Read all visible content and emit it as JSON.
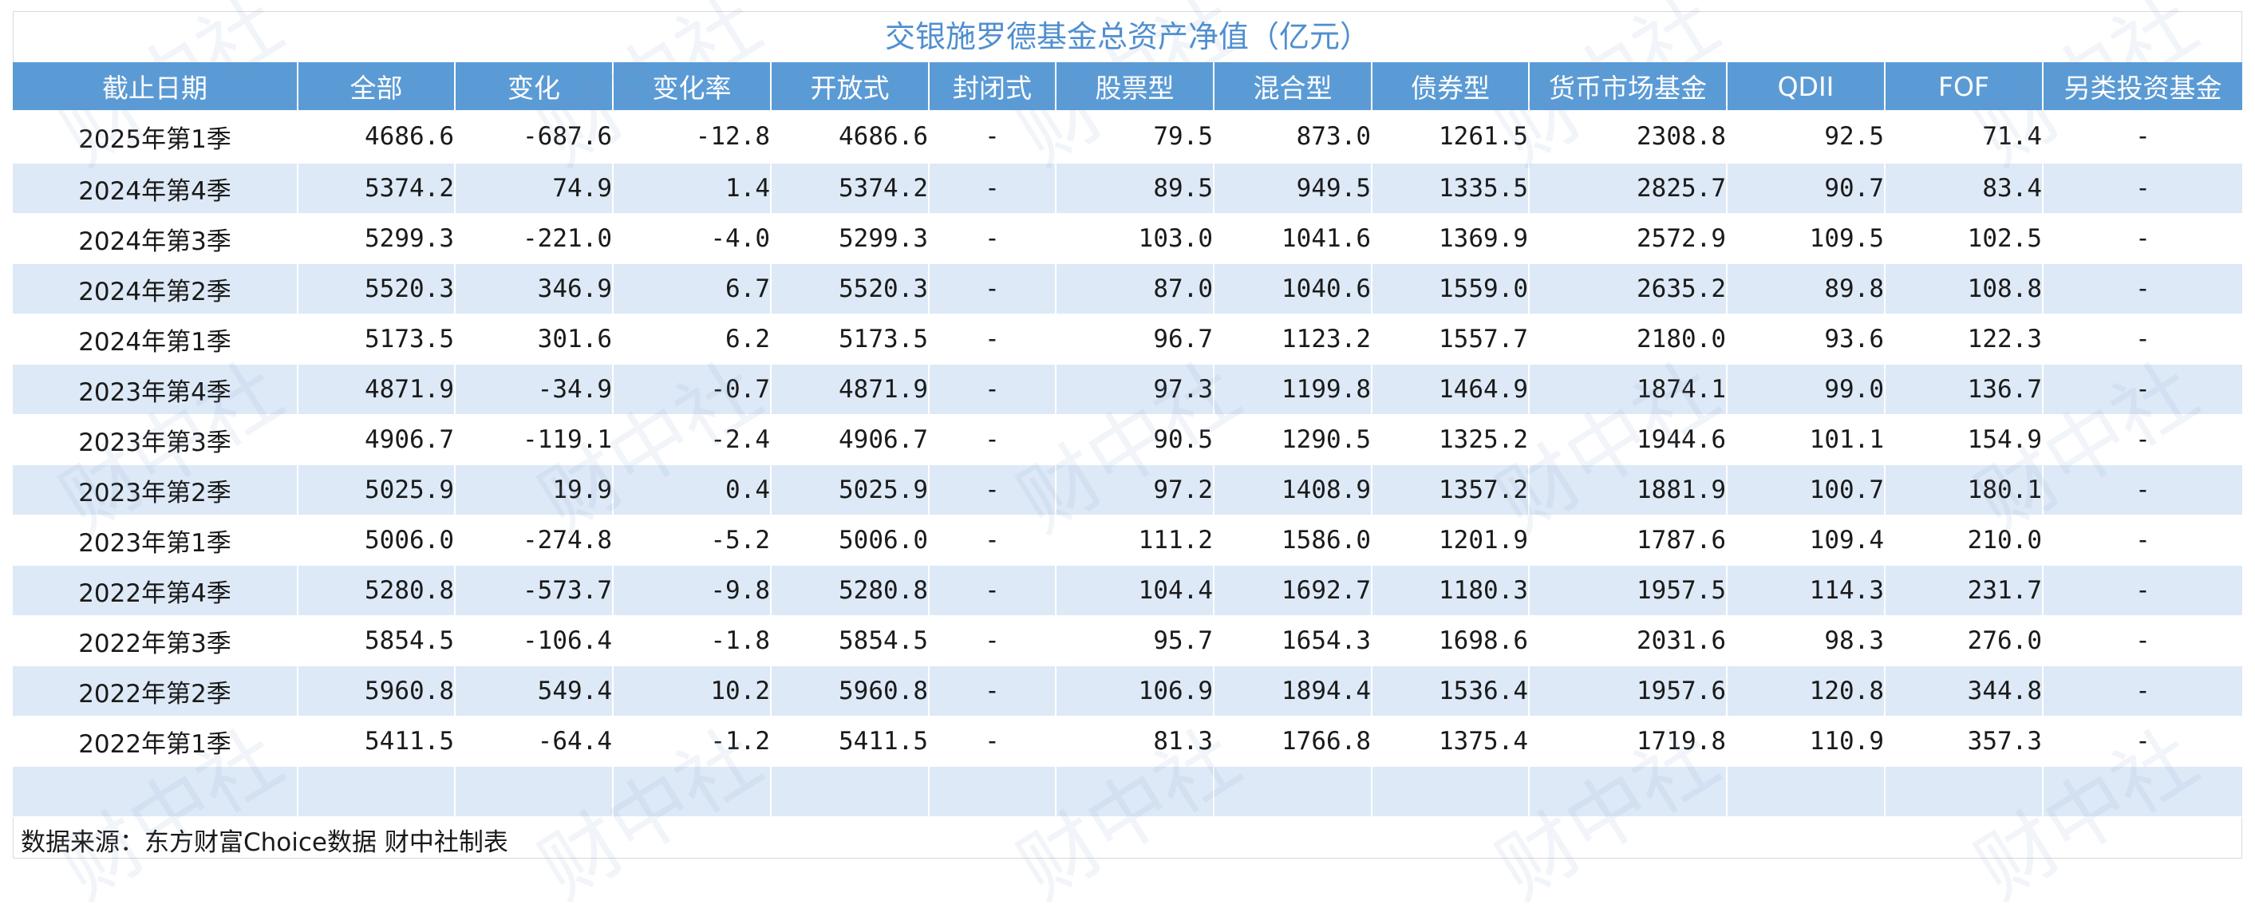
{
  "chart_data": {
    "type": "table",
    "title": "交银施罗德基金总资产净值（亿元）",
    "columns": [
      "截止日期",
      "全部",
      "变化",
      "变化率",
      "开放式",
      "封闭式",
      "股票型",
      "混合型",
      "债券型",
      "货币市场基金",
      "QDII",
      "FOF",
      "另类投资基金"
    ],
    "rows": [
      [
        "2025年第1季",
        "4686.6",
        "-687.6",
        "-12.8",
        "4686.6",
        "-",
        "79.5",
        "873.0",
        "1261.5",
        "2308.8",
        "92.5",
        "71.4",
        "-"
      ],
      [
        "2024年第4季",
        "5374.2",
        "74.9",
        "1.4",
        "5374.2",
        "-",
        "89.5",
        "949.5",
        "1335.5",
        "2825.7",
        "90.7",
        "83.4",
        "-"
      ],
      [
        "2024年第3季",
        "5299.3",
        "-221.0",
        "-4.0",
        "5299.3",
        "-",
        "103.0",
        "1041.6",
        "1369.9",
        "2572.9",
        "109.5",
        "102.5",
        "-"
      ],
      [
        "2024年第2季",
        "5520.3",
        "346.9",
        "6.7",
        "5520.3",
        "-",
        "87.0",
        "1040.6",
        "1559.0",
        "2635.2",
        "89.8",
        "108.8",
        "-"
      ],
      [
        "2024年第1季",
        "5173.5",
        "301.6",
        "6.2",
        "5173.5",
        "-",
        "96.7",
        "1123.2",
        "1557.7",
        "2180.0",
        "93.6",
        "122.3",
        "-"
      ],
      [
        "2023年第4季",
        "4871.9",
        "-34.9",
        "-0.7",
        "4871.9",
        "-",
        "97.3",
        "1199.8",
        "1464.9",
        "1874.1",
        "99.0",
        "136.7",
        "-"
      ],
      [
        "2023年第3季",
        "4906.7",
        "-119.1",
        "-2.4",
        "4906.7",
        "-",
        "90.5",
        "1290.5",
        "1325.2",
        "1944.6",
        "101.1",
        "154.9",
        "-"
      ],
      [
        "2023年第2季",
        "5025.9",
        "19.9",
        "0.4",
        "5025.9",
        "-",
        "97.2",
        "1408.9",
        "1357.2",
        "1881.9",
        "100.7",
        "180.1",
        "-"
      ],
      [
        "2023年第1季",
        "5006.0",
        "-274.8",
        "-5.2",
        "5006.0",
        "-",
        "111.2",
        "1586.0",
        "1201.9",
        "1787.6",
        "109.4",
        "210.0",
        "-"
      ],
      [
        "2022年第4季",
        "5280.8",
        "-573.7",
        "-9.8",
        "5280.8",
        "-",
        "104.4",
        "1692.7",
        "1180.3",
        "1957.5",
        "114.3",
        "231.7",
        "-"
      ],
      [
        "2022年第3季",
        "5854.5",
        "-106.4",
        "-1.8",
        "5854.5",
        "-",
        "95.7",
        "1654.3",
        "1698.6",
        "2031.6",
        "98.3",
        "276.0",
        "-"
      ],
      [
        "2022年第2季",
        "5960.8",
        "549.4",
        "10.2",
        "5960.8",
        "-",
        "106.9",
        "1894.4",
        "1536.4",
        "1957.6",
        "120.8",
        "344.8",
        "-"
      ],
      [
        "2022年第1季",
        "5411.5",
        "-64.4",
        "-1.2",
        "5411.5",
        "-",
        "81.3",
        "1766.8",
        "1375.4",
        "1719.8",
        "110.9",
        "357.3",
        "-"
      ]
    ],
    "highlighted_cells": [
      [
        0,
        1
      ],
      [
        0,
        6
      ],
      [
        0,
        7
      ],
      [
        0,
        8
      ],
      [
        0,
        9
      ],
      [
        0,
        10
      ],
      [
        0,
        11
      ],
      [
        11,
        1
      ],
      [
        11,
        6
      ],
      [
        11,
        7
      ],
      [
        11,
        8
      ],
      [
        11,
        9
      ],
      [
        11,
        10
      ],
      [
        11,
        11
      ]
    ],
    "source": "数据来源：东方财富Choice数据 财中社制表",
    "watermark": "财中社"
  },
  "colors": {
    "header_bg": "#5b9bd5",
    "title_text": "#4f8fcf",
    "band_bg": "#dde9f6",
    "highlight_text": "#e02020"
  }
}
